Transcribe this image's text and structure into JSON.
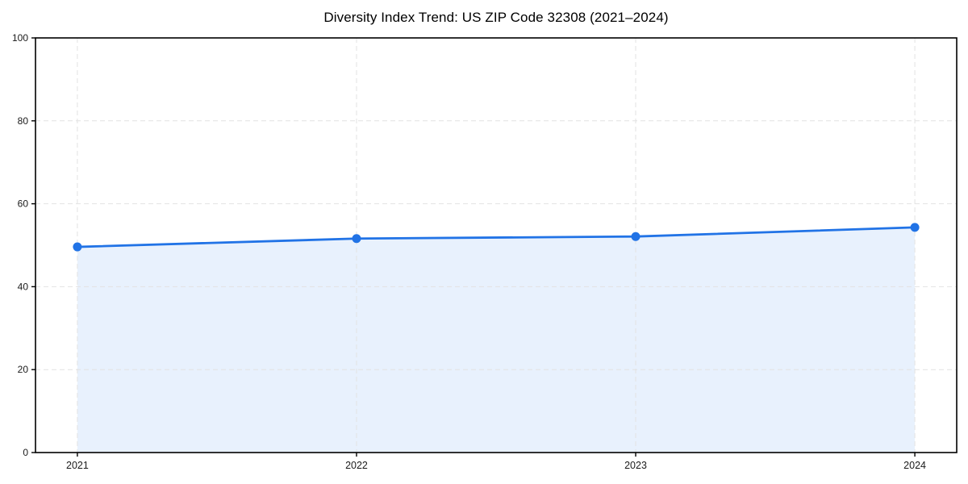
{
  "chart_data": {
    "type": "area",
    "title": "Diversity Index Trend: US ZIP Code 32308 (2021–2024)",
    "categories": [
      "2021",
      "2022",
      "2023",
      "2024"
    ],
    "values": [
      49.6,
      51.6,
      52.1,
      54.3
    ],
    "series_name": "Diversity Index",
    "xlabel": "",
    "ylabel": "",
    "ylim": [
      0,
      100
    ],
    "yticks": [
      0,
      20,
      40,
      60,
      80,
      100
    ],
    "grid": true,
    "grid_style": "dashed",
    "legend": "none",
    "marker": "circle",
    "colors": {
      "line": "#2173e6",
      "marker": "#2173e6",
      "fill": "#e8f1fd",
      "grid": "#e2e2e2",
      "axis": "#000000",
      "tick_label": "#1a1a1a",
      "title": "#000000",
      "background": "#ffffff"
    }
  }
}
